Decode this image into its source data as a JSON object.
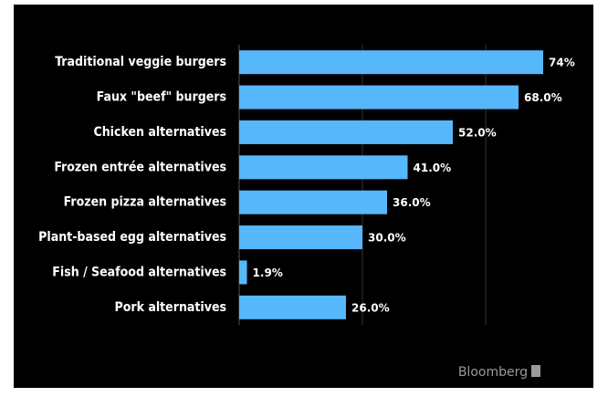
{
  "chart_data": {
    "type": "hbar",
    "categories": [
      "Traditional veggie burgers",
      "Faux \"beef\" burgers",
      "Chicken alternatives",
      "Frozen entrée alternatives",
      "Frozen pizza alternatives",
      "Plant-based egg alternatives",
      "Fish / Seafood alternatives",
      "Pork alternatives"
    ],
    "values": [
      74,
      68,
      52,
      41,
      36,
      30,
      1.9,
      26
    ],
    "value_labels": [
      "74%",
      "68.0%",
      "52.0%",
      "41.0%",
      "36.0%",
      "30.0%",
      "1.9%",
      "26.0%"
    ],
    "color": "#56b7fb",
    "xlim": [
      0,
      80
    ],
    "xticks": [
      0,
      30,
      60
    ],
    "grid": true,
    "source": "Bloomberg"
  }
}
